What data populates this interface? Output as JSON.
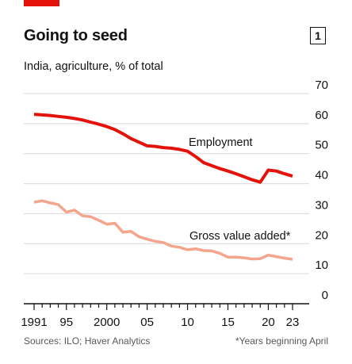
{
  "header": {
    "title": "Going to seed",
    "chart_number": "1",
    "subtitle": "India, agriculture, % of total"
  },
  "footer": {
    "source": "Sources: ILO; Haver Analytics",
    "note": "*Years beginning April"
  },
  "colors": {
    "accent": "#e3120b",
    "employment": "#e3120b",
    "gross_value_added": "#f4a58c",
    "grid": "#d9d9d9",
    "axis": "#121212"
  },
  "chart_data": {
    "type": "line",
    "title": "Going to seed",
    "subtitle": "India, agriculture, % of total",
    "xlim": [
      1991,
      2023
    ],
    "ylim": [
      0,
      70
    ],
    "yticks": [
      0,
      10,
      20,
      30,
      40,
      50,
      60,
      70
    ],
    "xtick_labels": [
      {
        "x": 1991,
        "label": "1991"
      },
      {
        "x": 1995,
        "label": "95"
      },
      {
        "x": 2000,
        "label": "2000"
      },
      {
        "x": 2005,
        "label": "05"
      },
      {
        "x": 2010,
        "label": "10"
      },
      {
        "x": 2015,
        "label": "15"
      },
      {
        "x": 2020,
        "label": "20"
      },
      {
        "x": 2023,
        "label": "23"
      }
    ],
    "y_axis_position": "right",
    "grid": true,
    "series": [
      {
        "name": "Employment",
        "x": [
          1991,
          1992,
          1993,
          1994,
          1995,
          1996,
          1997,
          1998,
          1999,
          2000,
          2001,
          2002,
          2003,
          2004,
          2005,
          2006,
          2007,
          2008,
          2009,
          2010,
          2011,
          2012,
          2013,
          2014,
          2015,
          2016,
          2017,
          2018,
          2019,
          2020,
          2021,
          2022,
          2023
        ],
        "values": [
          63.1,
          62.9,
          62.7,
          62.4,
          62.1,
          61.7,
          61.2,
          60.5,
          59.8,
          59.0,
          58.0,
          56.6,
          55.0,
          53.8,
          52.6,
          52.4,
          52.0,
          51.8,
          51.4,
          50.8,
          49.0,
          47.0,
          46.0,
          45.0,
          44.2,
          43.3,
          42.3,
          41.3,
          40.5,
          44.5,
          44.2,
          43.3,
          42.5
        ]
      },
      {
        "name": "Gross value added*",
        "x": [
          1991,
          1992,
          1993,
          1994,
          1995,
          1996,
          1997,
          1998,
          1999,
          2000,
          2001,
          2002,
          2003,
          2004,
          2005,
          2006,
          2007,
          2008,
          2009,
          2010,
          2011,
          2012,
          2013,
          2014,
          2015,
          2016,
          2017,
          2018,
          2019,
          2020,
          2021,
          2022,
          2023
        ],
        "values": [
          33.8,
          34.3,
          33.6,
          33.0,
          30.5,
          31.2,
          29.3,
          29.0,
          27.8,
          26.5,
          26.8,
          23.8,
          24.1,
          22.3,
          21.5,
          20.8,
          20.4,
          19.2,
          18.8,
          18.0,
          18.3,
          17.7,
          17.6,
          16.8,
          15.5,
          15.5,
          15.3,
          14.9,
          15.0,
          16.2,
          15.7,
          15.2,
          14.8
        ]
      }
    ]
  }
}
